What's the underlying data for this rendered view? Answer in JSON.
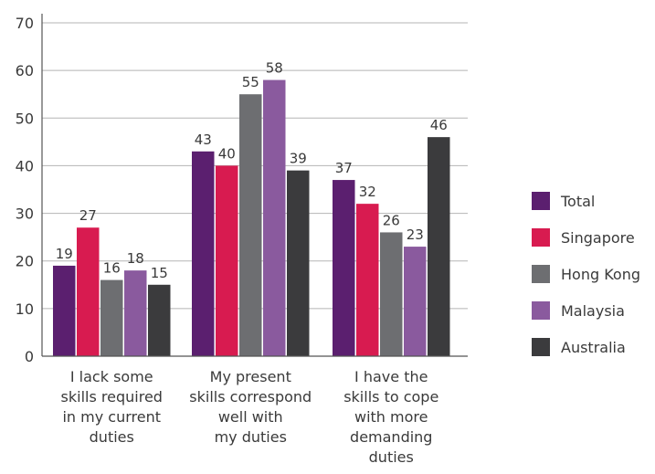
{
  "chart_data": {
    "type": "bar",
    "categories": [
      [
        "I lack some",
        "skills required",
        "in my current",
        "duties"
      ],
      [
        "My present",
        "skills correspond",
        "well with",
        "my duties"
      ],
      [
        "I have the",
        "skills to cope",
        "with more",
        "demanding",
        "duties"
      ]
    ],
    "series": [
      {
        "name": "Total",
        "color": "#5b1f6f",
        "values": [
          19,
          43,
          37
        ]
      },
      {
        "name": "Singapore",
        "color": "#d81b50",
        "values": [
          27,
          40,
          32
        ]
      },
      {
        "name": "Hong Kong",
        "color": "#6d6e71",
        "values": [
          16,
          55,
          26
        ]
      },
      {
        "name": "Malaysia",
        "color": "#8a5a9e",
        "values": [
          18,
          58,
          23
        ]
      },
      {
        "name": "Australia",
        "color": "#3b3b3d",
        "values": [
          15,
          39,
          46
        ]
      }
    ],
    "yticks": [
      0,
      10,
      20,
      30,
      40,
      50,
      60,
      70
    ],
    "ylim": [
      0,
      70
    ],
    "grid": true,
    "legend": "right",
    "title": "",
    "xlabel": "",
    "ylabel": ""
  }
}
